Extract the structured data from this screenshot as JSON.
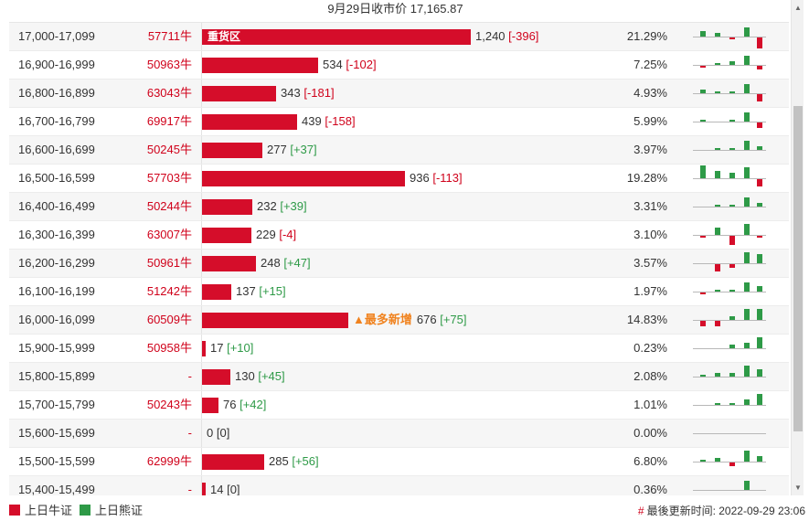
{
  "caption": "9月29日收市价 17,165.87",
  "colors": {
    "bull": "#d50d2a",
    "bear": "#2e9a47",
    "note": "#f0821e"
  },
  "scale_max": 1240,
  "rows": [
    {
      "range": "17,000-17,099",
      "code": "57711牛",
      "value": 1240,
      "value_text": "1,240",
      "change": "[-396]",
      "dir": "neg",
      "pct": "21.29%",
      "bar_label": "重货区",
      "note": "",
      "spark": [
        3,
        2,
        -1,
        5,
        -6
      ]
    },
    {
      "range": "16,900-16,999",
      "code": "50963牛",
      "value": 534,
      "value_text": "534",
      "change": "[-102]",
      "dir": "neg",
      "pct": "7.25%",
      "bar_label": "",
      "note": "",
      "spark": [
        -1,
        1,
        2,
        5,
        -2
      ]
    },
    {
      "range": "16,800-16,899",
      "code": "63043牛",
      "value": 343,
      "value_text": "343",
      "change": "[-181]",
      "dir": "neg",
      "pct": "4.93%",
      "bar_label": "",
      "note": "",
      "spark": [
        2,
        1,
        1,
        5,
        -4
      ]
    },
    {
      "range": "16,700-16,799",
      "code": "69917牛",
      "value": 439,
      "value_text": "439",
      "change": "[-158]",
      "dir": "neg",
      "pct": "5.99%",
      "bar_label": "",
      "note": "",
      "spark": [
        1,
        0,
        1,
        5,
        -3
      ]
    },
    {
      "range": "16,600-16,699",
      "code": "50245牛",
      "value": 277,
      "value_text": "277",
      "change": "[+37]",
      "dir": "pos",
      "pct": "3.97%",
      "bar_label": "",
      "note": "",
      "spark": [
        0,
        1,
        1,
        5,
        2
      ]
    },
    {
      "range": "16,500-16,599",
      "code": "57703牛",
      "value": 936,
      "value_text": "936",
      "change": "[-113]",
      "dir": "neg",
      "pct": "19.28%",
      "bar_label": "",
      "note": "",
      "spark": [
        7,
        4,
        3,
        6,
        -4
      ]
    },
    {
      "range": "16,400-16,499",
      "code": "50244牛",
      "value": 232,
      "value_text": "232",
      "change": "[+39]",
      "dir": "pos",
      "pct": "3.31%",
      "bar_label": "",
      "note": "",
      "spark": [
        0,
        1,
        1,
        5,
        2
      ]
    },
    {
      "range": "16,300-16,399",
      "code": "63007牛",
      "value": 229,
      "value_text": "229",
      "change": "[-4]",
      "dir": "neg",
      "pct": "3.10%",
      "bar_label": "",
      "note": "",
      "spark": [
        -1,
        4,
        -5,
        6,
        -1
      ]
    },
    {
      "range": "16,200-16,299",
      "code": "50961牛",
      "value": 248,
      "value_text": "248",
      "change": "[+47]",
      "dir": "pos",
      "pct": "3.57%",
      "bar_label": "",
      "note": "",
      "spark": [
        0,
        -4,
        -2,
        6,
        5
      ]
    },
    {
      "range": "16,100-16,199",
      "code": "51242牛",
      "value": 137,
      "value_text": "137",
      "change": "[+15]",
      "dir": "pos",
      "pct": "1.97%",
      "bar_label": "",
      "note": "",
      "spark": [
        -1,
        1,
        1,
        5,
        3
      ]
    },
    {
      "range": "16,000-16,099",
      "code": "60509牛",
      "value": 676,
      "value_text": "676",
      "change": "[+75]",
      "dir": "pos",
      "pct": "14.83%",
      "bar_label": "",
      "note": "▲最多新增",
      "spark": [
        -3,
        -3,
        2,
        6,
        6
      ]
    },
    {
      "range": "15,900-15,999",
      "code": "50958牛",
      "value": 17,
      "value_text": "17",
      "change": "[+10]",
      "dir": "pos",
      "pct": "0.23%",
      "bar_label": "",
      "note": "",
      "spark": [
        0,
        0,
        2,
        3,
        6
      ]
    },
    {
      "range": "15,800-15,899",
      "code": "-",
      "value": 130,
      "value_text": "130",
      "change": "[+45]",
      "dir": "pos",
      "pct": "2.08%",
      "bar_label": "",
      "note": "",
      "spark": [
        1,
        2,
        2,
        6,
        4
      ]
    },
    {
      "range": "15,700-15,799",
      "code": "50243牛",
      "value": 76,
      "value_text": "76",
      "change": "[+42]",
      "dir": "pos",
      "pct": "1.01%",
      "bar_label": "",
      "note": "",
      "spark": [
        0,
        1,
        1,
        3,
        6
      ]
    },
    {
      "range": "15,600-15,699",
      "code": "-",
      "value": 0,
      "value_text": "0",
      "change": "[0]",
      "dir": "zero",
      "pct": "0.00%",
      "bar_label": "",
      "note": "",
      "spark": [
        0,
        0,
        0,
        0,
        0
      ]
    },
    {
      "range": "15,500-15,599",
      "code": "62999牛",
      "value": 285,
      "value_text": "285",
      "change": "[+56]",
      "dir": "pos",
      "pct": "6.80%",
      "bar_label": "",
      "note": "",
      "spark": [
        1,
        2,
        -2,
        6,
        3
      ]
    },
    {
      "range": "15,400-15,499",
      "code": "-",
      "value": 14,
      "value_text": "14",
      "change": "[0]",
      "dir": "zero",
      "pct": "0.36%",
      "bar_label": "",
      "note": "",
      "spark": [
        0,
        0,
        0,
        5,
        0
      ]
    }
  ],
  "legend": {
    "bull_label": "上日牛证",
    "bear_label": "上日熊证"
  },
  "updated": {
    "marker": "#",
    "text": "最後更新时间: 2022-09-29 23:06"
  }
}
